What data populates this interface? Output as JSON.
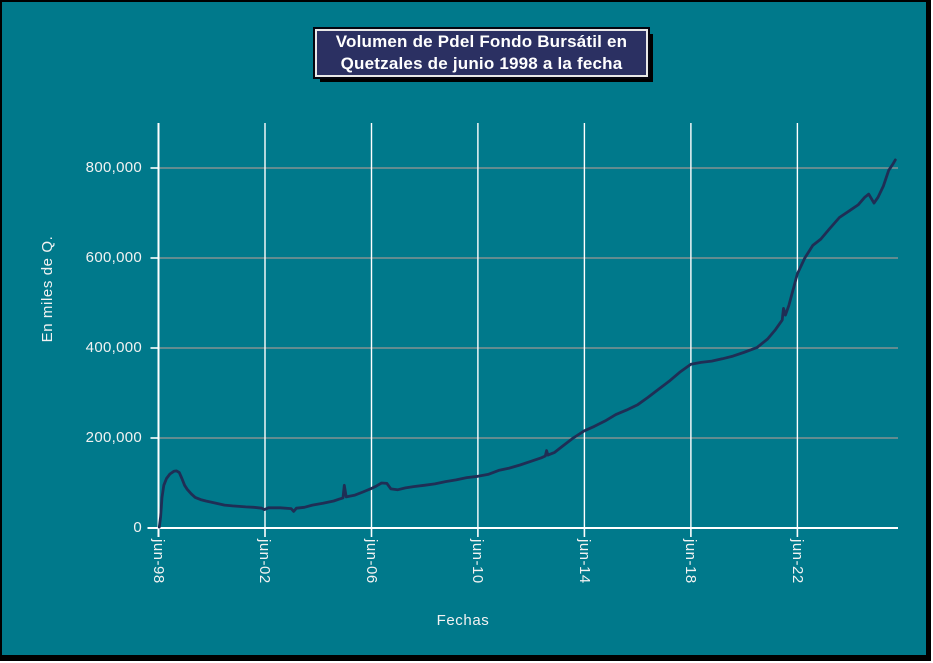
{
  "colors": {
    "background": "#00798B",
    "title_box_bg": "#2B3062",
    "title_text": "#FFFFFF",
    "line": "#1F2E55",
    "grid_horizontal": "#9D9894",
    "grid_vertical": "#FFFFFF",
    "axis": "#FFFFFF",
    "label_text": "#F2F2F2",
    "shadow": "#000000"
  },
  "chart_data": {
    "type": "line",
    "title": "Volumen de Pdel Fondo Bursátil en Quetzales de junio 1998 a la fecha",
    "title_lines": [
      "Volumen de Pdel Fondo Bursátil en",
      "Quetzales de junio 1998 a la fecha"
    ],
    "xlabel": "Fechas",
    "ylabel": "En miles de Q.",
    "xlim": [
      1998.42,
      2026.2
    ],
    "ylim": [
      0,
      900000
    ],
    "grid": {
      "horizontal": "on",
      "vertical": "on"
    },
    "legend": "none",
    "x_ticks": [
      {
        "year": 1998.42,
        "label": "jun-98"
      },
      {
        "year": 2002.42,
        "label": "jun-02"
      },
      {
        "year": 2006.42,
        "label": "jun-06"
      },
      {
        "year": 2010.42,
        "label": "jun-10"
      },
      {
        "year": 2014.42,
        "label": "jun-14"
      },
      {
        "year": 2018.42,
        "label": "jun-18"
      },
      {
        "year": 2022.42,
        "label": "jun-22"
      }
    ],
    "y_ticks": [
      {
        "value": 0,
        "label": "0"
      },
      {
        "value": 200000,
        "label": "200,000"
      },
      {
        "value": 400000,
        "label": "400,000"
      },
      {
        "value": 600000,
        "label": "600,000"
      },
      {
        "value": 800000,
        "label": "800,000"
      }
    ],
    "points": [
      [
        1998.45,
        2000
      ],
      [
        1998.5,
        25000
      ],
      [
        1998.55,
        68000
      ],
      [
        1998.62,
        95000
      ],
      [
        1998.72,
        110000
      ],
      [
        1998.85,
        120000
      ],
      [
        1999.0,
        126000
      ],
      [
        1999.1,
        127000
      ],
      [
        1999.2,
        123000
      ],
      [
        1999.3,
        110000
      ],
      [
        1999.4,
        95000
      ],
      [
        1999.5,
        86000
      ],
      [
        1999.65,
        76000
      ],
      [
        1999.8,
        68000
      ],
      [
        2000.0,
        63000
      ],
      [
        2000.2,
        60000
      ],
      [
        2000.5,
        56000
      ],
      [
        2000.9,
        51000
      ],
      [
        2001.2,
        49000
      ],
      [
        2001.7,
        47000
      ],
      [
        2002.0,
        46000
      ],
      [
        2002.3,
        44000
      ],
      [
        2002.4,
        41000
      ],
      [
        2002.55,
        45000
      ],
      [
        2003.0,
        45000
      ],
      [
        2003.4,
        43000
      ],
      [
        2003.5,
        37000
      ],
      [
        2003.6,
        44000
      ],
      [
        2003.9,
        46000
      ],
      [
        2004.2,
        51000
      ],
      [
        2004.6,
        55000
      ],
      [
        2005.0,
        60000
      ],
      [
        2005.2,
        64000
      ],
      [
        2005.35,
        67000
      ],
      [
        2005.4,
        95000
      ],
      [
        2005.47,
        69000
      ],
      [
        2005.8,
        73000
      ],
      [
        2006.1,
        80000
      ],
      [
        2006.42,
        88000
      ],
      [
        2006.6,
        93000
      ],
      [
        2006.8,
        100000
      ],
      [
        2007.0,
        99000
      ],
      [
        2007.15,
        87000
      ],
      [
        2007.4,
        85000
      ],
      [
        2007.7,
        89000
      ],
      [
        2008.0,
        92000
      ],
      [
        2008.4,
        95000
      ],
      [
        2008.8,
        98000
      ],
      [
        2009.2,
        103000
      ],
      [
        2009.6,
        107000
      ],
      [
        2010.0,
        112000
      ],
      [
        2010.42,
        115000
      ],
      [
        2010.8,
        119000
      ],
      [
        2011.2,
        128000
      ],
      [
        2011.6,
        133000
      ],
      [
        2012.0,
        140000
      ],
      [
        2012.4,
        148000
      ],
      [
        2012.8,
        156000
      ],
      [
        2012.95,
        160000
      ],
      [
        2013.0,
        172000
      ],
      [
        2013.05,
        162000
      ],
      [
        2013.3,
        168000
      ],
      [
        2013.6,
        182000
      ],
      [
        2014.0,
        200000
      ],
      [
        2014.42,
        216000
      ],
      [
        2014.8,
        226000
      ],
      [
        2015.2,
        238000
      ],
      [
        2015.6,
        252000
      ],
      [
        2016.0,
        262000
      ],
      [
        2016.42,
        274000
      ],
      [
        2016.8,
        290000
      ],
      [
        2017.2,
        308000
      ],
      [
        2017.6,
        326000
      ],
      [
        2018.0,
        346000
      ],
      [
        2018.42,
        364000
      ],
      [
        2018.8,
        368000
      ],
      [
        2019.2,
        371000
      ],
      [
        2019.6,
        376000
      ],
      [
        2020.0,
        382000
      ],
      [
        2020.4,
        390000
      ],
      [
        2020.9,
        401000
      ],
      [
        2021.3,
        420000
      ],
      [
        2021.6,
        441000
      ],
      [
        2021.85,
        462000
      ],
      [
        2021.9,
        488000
      ],
      [
        2021.97,
        473000
      ],
      [
        2022.1,
        495000
      ],
      [
        2022.42,
        565000
      ],
      [
        2022.7,
        600000
      ],
      [
        2023.0,
        628000
      ],
      [
        2023.3,
        642000
      ],
      [
        2023.6,
        663000
      ],
      [
        2024.0,
        690000
      ],
      [
        2024.4,
        706000
      ],
      [
        2024.7,
        718000
      ],
      [
        2024.95,
        735000
      ],
      [
        2025.1,
        742000
      ],
      [
        2025.3,
        722000
      ],
      [
        2025.45,
        735000
      ],
      [
        2025.65,
        760000
      ],
      [
        2025.85,
        795000
      ],
      [
        2026.0,
        808000
      ],
      [
        2026.1,
        818000
      ]
    ]
  }
}
